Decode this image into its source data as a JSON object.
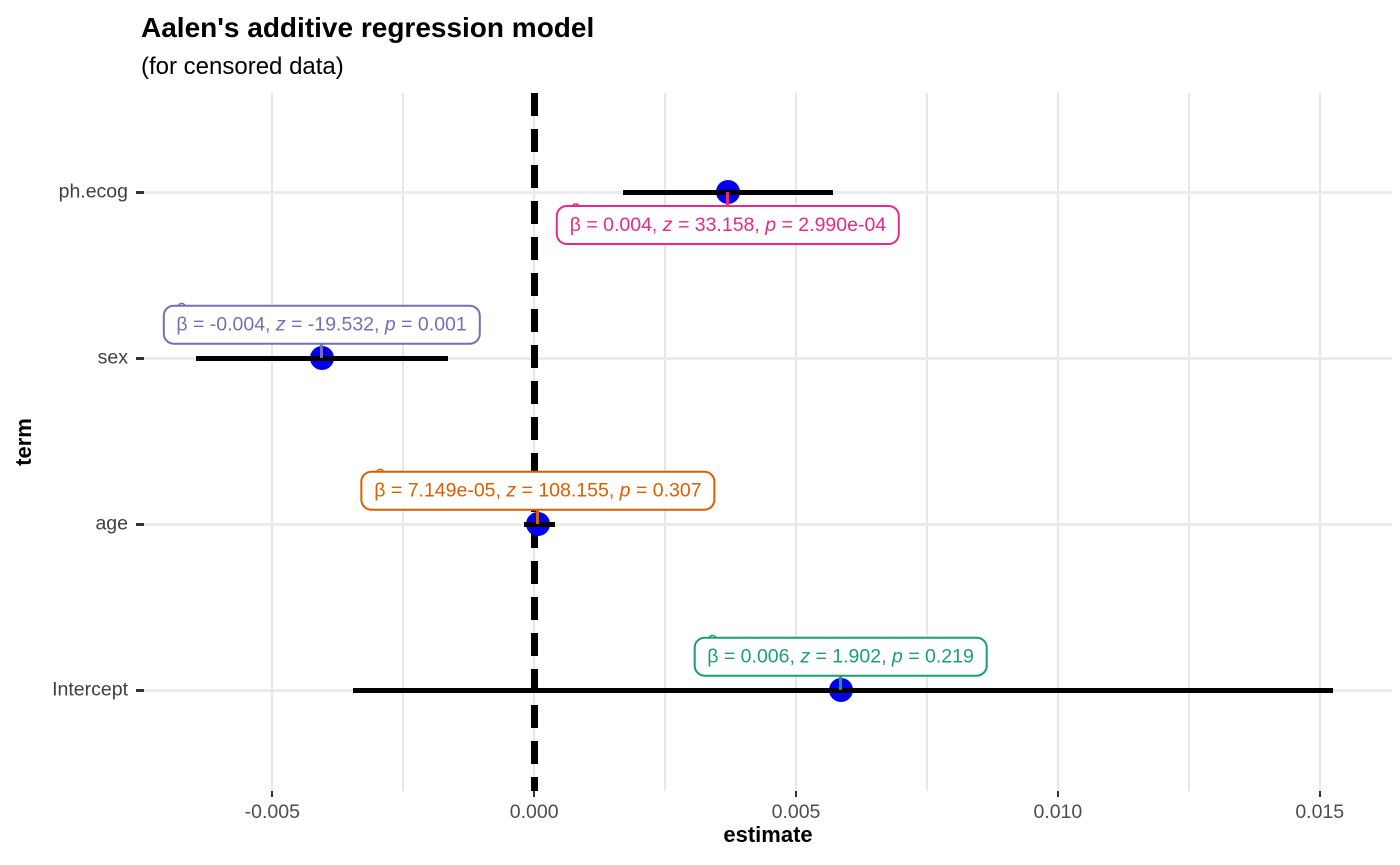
{
  "chart_data": {
    "type": "scatter",
    "subtype": "coefficient-forest-plot",
    "title": "Aalen's additive regression model",
    "subtitle": "(for censored data)",
    "xlabel": "estimate",
    "ylabel": "term",
    "xlim": [
      -0.00745,
      0.01638
    ],
    "x_ticks": [
      -0.005,
      0.0,
      0.005,
      0.01,
      0.015
    ],
    "x_tick_labels": [
      "-0.005",
      "0.000",
      "0.005",
      "0.010",
      "0.015"
    ],
    "grid_step": 0.0025,
    "grid": true,
    "legend": false,
    "categories": [
      "ph.ecog",
      "sex",
      "age",
      "Intercept"
    ],
    "reference_vline_x": 0.0,
    "point_color": "#0000ee",
    "errorbar_color": "#000000",
    "label_format": {
      "beta_symbol": "β",
      "hat_symbol": "ˆ",
      "z_symbol": "z",
      "p_symbol": "p",
      "equals": " = ",
      "separator": ", "
    },
    "series": [
      {
        "term": "ph.ecog",
        "estimate": 0.0037,
        "ci_low": 0.0017,
        "ci_high": 0.0057,
        "z": 33.158,
        "p": "2.990e-04",
        "label": {
          "beta": "0.004",
          "z": "33.158",
          "p": "2.990e-04"
        },
        "color": "#e7298a",
        "label_side": "below"
      },
      {
        "term": "sex",
        "estimate": -0.00406,
        "ci_low": -0.00645,
        "ci_high": -0.00165,
        "z": -19.532,
        "p": "0.001",
        "label": {
          "beta": "-0.004",
          "z": "-19.532",
          "p": "0.001"
        },
        "color": "#7570b3",
        "label_side": "above"
      },
      {
        "term": "age",
        "estimate": 7.149e-05,
        "ci_low": -0.0002,
        "ci_high": 0.0004,
        "z": 108.155,
        "p": "0.307",
        "label": {
          "beta": "7.149e-05",
          "z": "108.155",
          "p": "0.307"
        },
        "color": "#d95f02",
        "label_side": "above"
      },
      {
        "term": "Intercept",
        "estimate": 0.00585,
        "ci_low": -0.00345,
        "ci_high": 0.01525,
        "z": 1.902,
        "p": "0.219",
        "label": {
          "beta": "0.006",
          "z": "1.902",
          "p": "0.219"
        },
        "color": "#1b9e77",
        "label_side": "above"
      }
    ]
  }
}
